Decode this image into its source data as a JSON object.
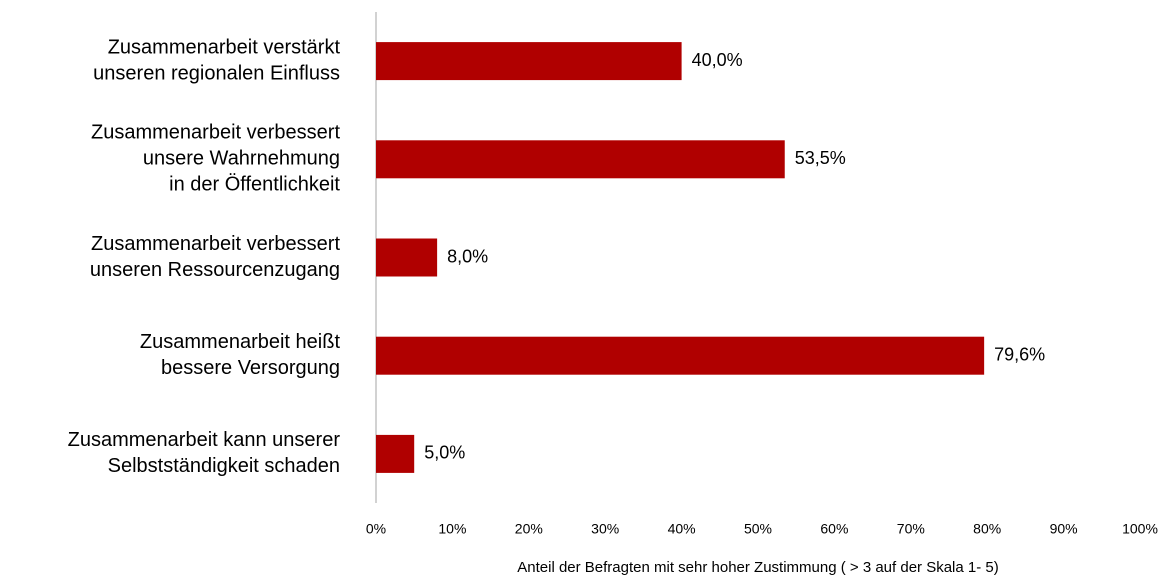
{
  "chart_data": {
    "type": "bar",
    "orientation": "horizontal",
    "categories": [
      [
        "Zusammenarbeit verstärkt",
        "unseren regionalen Einfluss"
      ],
      [
        "Zusammenarbeit verbessert",
        "unsere Wahrnehmung",
        "in der Öffentlichkeit"
      ],
      [
        "Zusammenarbeit verbessert",
        "unseren Ressourcenzugang"
      ],
      [
        "Zusammenarbeit heißt",
        "bessere Versorgung"
      ],
      [
        "Zusammenarbeit kann unserer",
        "Selbstständigkeit schaden"
      ]
    ],
    "values": [
      40.0,
      53.5,
      8.0,
      79.6,
      5.0
    ],
    "value_labels": [
      "40,0%",
      "53,5%",
      "8,0%",
      "79,6%",
      "5,0%"
    ],
    "color": "#b00000",
    "xlabel": "Anteil der Befragten mit sehr hoher Zustimmung ( > 3 auf der Skala 1- 5)",
    "xlim": [
      0,
      100
    ],
    "xticks": [
      {
        "value": 0,
        "label": "0%"
      },
      {
        "value": 10,
        "label": "10%"
      },
      {
        "value": 20,
        "label": "20%"
      },
      {
        "value": 30,
        "label": "30%"
      },
      {
        "value": 40,
        "label": "40%"
      },
      {
        "value": 50,
        "label": "50%"
      },
      {
        "value": 60,
        "label": "60%"
      },
      {
        "value": 70,
        "label": "70%"
      },
      {
        "value": 80,
        "label": "80%"
      },
      {
        "value": 90,
        "label": "90%"
      },
      {
        "value": 100,
        "label": "100%"
      }
    ],
    "grid": false
  }
}
